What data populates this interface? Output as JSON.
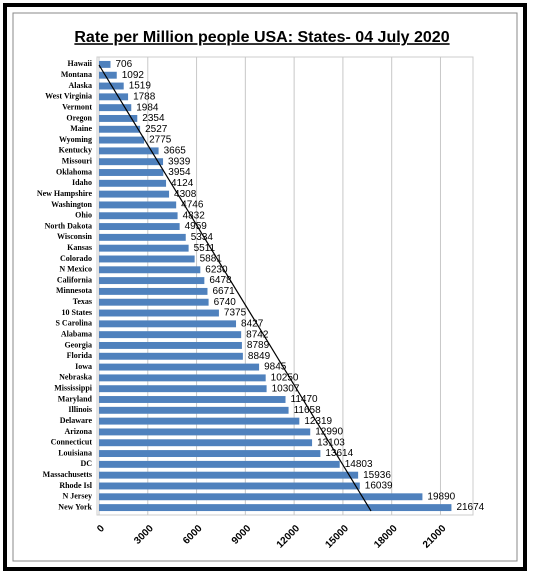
{
  "chart_data": {
    "type": "bar",
    "orientation": "horizontal",
    "title": "Rate per Million people USA: States- 04 July 2020",
    "categories": [
      "Hawaii",
      "Montana",
      "Alaska",
      "West Virginia",
      "Vermont",
      "Oregon",
      "Maine",
      "Wyoming",
      "Kentucky",
      "Missouri",
      "Oklahoma",
      "Idaho",
      "New Hampshire",
      "Washington",
      "Ohio",
      "North Dakota",
      "Wisconsin",
      "Kansas",
      "Colorado",
      "N Mexico",
      "California",
      "Minnesota",
      "Texas",
      "10 States",
      "S Carolina",
      "Alabama",
      "Georgia",
      "Florida",
      "Iowa",
      "Nebraska",
      "Mississippi",
      "Maryland",
      "Illinois",
      "Delaware",
      "Arizona",
      "Connecticut",
      "Louisiana",
      "DC",
      "Massachusetts",
      "Rhode Isl",
      "N Jersey",
      "New York"
    ],
    "values": [
      706,
      1092,
      1519,
      1788,
      1984,
      2354,
      2527,
      2775,
      3665,
      3939,
      3954,
      4124,
      4308,
      4746,
      4832,
      4959,
      5334,
      5511,
      5881,
      6230,
      6478,
      6671,
      6740,
      7375,
      8427,
      8742,
      8789,
      8849,
      9845,
      10250,
      10307,
      11470,
      11658,
      12319,
      12990,
      13103,
      13614,
      14803,
      15936,
      16039,
      19890,
      21674
    ],
    "color": "#4f81bd",
    "xlim": [
      0,
      23000
    ],
    "xticks": [
      0,
      3000,
      6000,
      9000,
      12000,
      15000,
      18000,
      21000
    ],
    "grid": true,
    "trendline": true
  }
}
